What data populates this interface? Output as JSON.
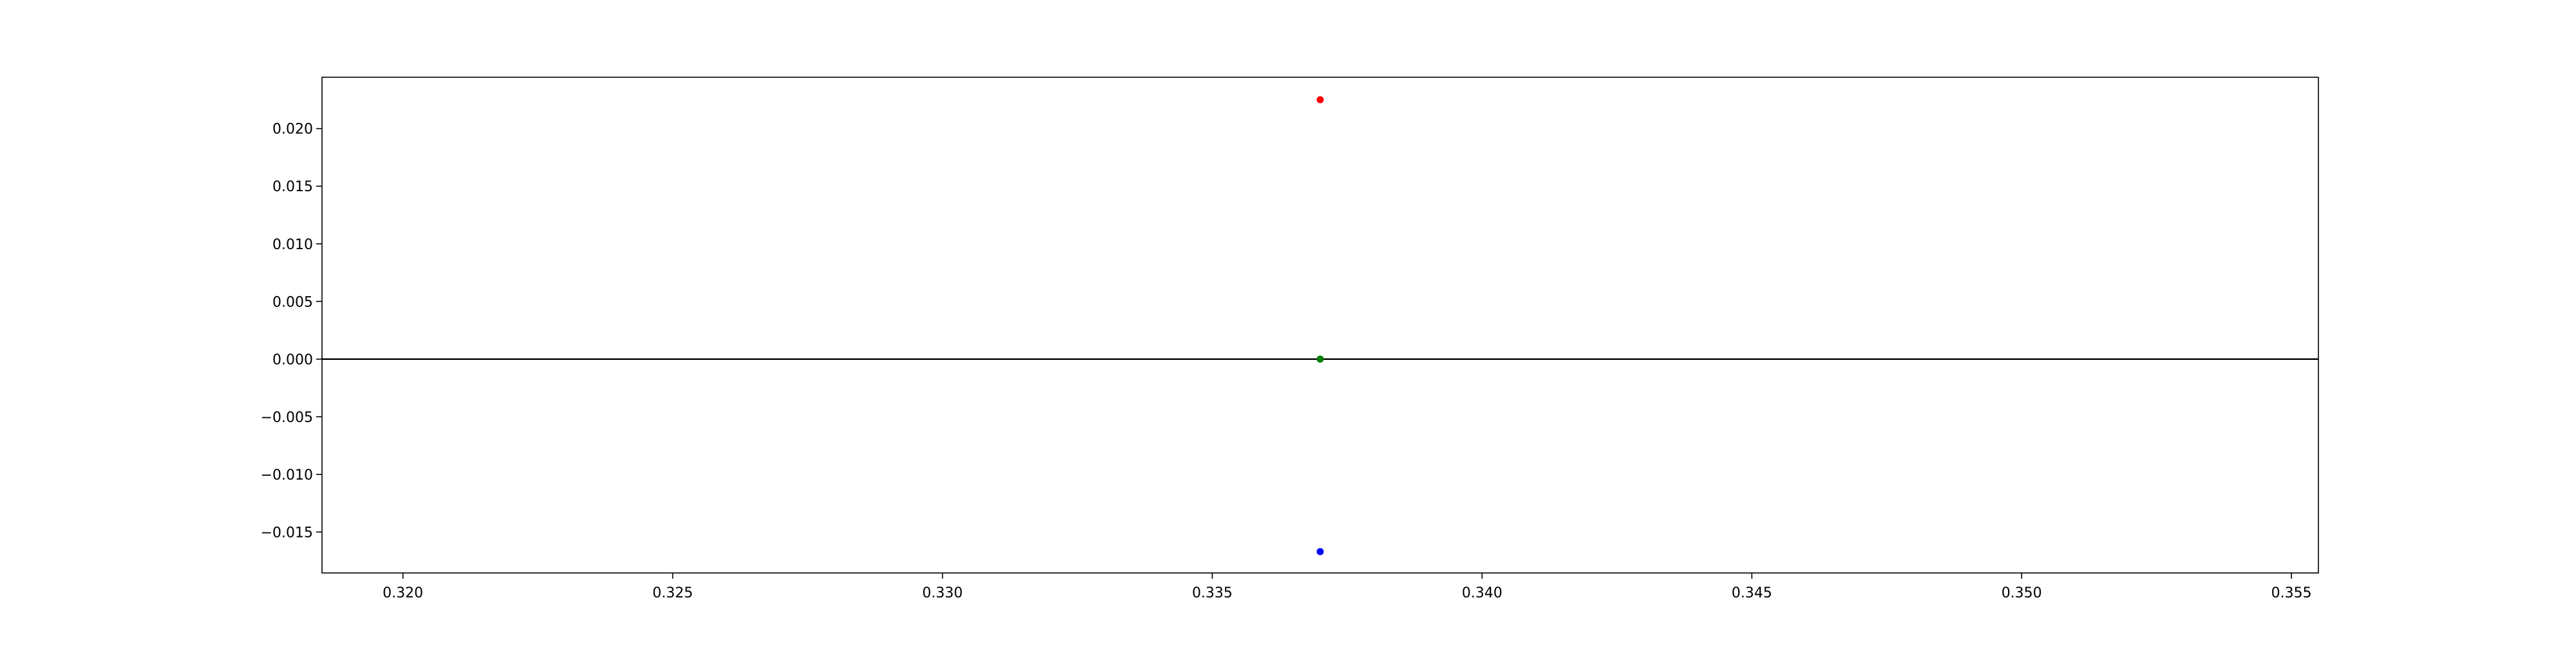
{
  "chart_data": {
    "type": "scatter",
    "title": "",
    "xlabel": "",
    "ylabel": "",
    "xlim": [
      0.3185,
      0.3555
    ],
    "ylim": [
      -0.01855,
      0.02445
    ],
    "grid": false,
    "x_ticks": [
      {
        "value": 0.32,
        "label": "0.320"
      },
      {
        "value": 0.325,
        "label": "0.325"
      },
      {
        "value": 0.33,
        "label": "0.330"
      },
      {
        "value": 0.335,
        "label": "0.335"
      },
      {
        "value": 0.34,
        "label": "0.340"
      },
      {
        "value": 0.345,
        "label": "0.345"
      },
      {
        "value": 0.35,
        "label": "0.350"
      },
      {
        "value": 0.355,
        "label": "0.355"
      }
    ],
    "y_ticks": [
      {
        "value": -0.015,
        "label": "−0.015"
      },
      {
        "value": -0.01,
        "label": "−0.010"
      },
      {
        "value": -0.005,
        "label": "−0.005"
      },
      {
        "value": 0.0,
        "label": "0.000"
      },
      {
        "value": 0.005,
        "label": "0.005"
      },
      {
        "value": 0.01,
        "label": "0.010"
      },
      {
        "value": 0.015,
        "label": "0.015"
      },
      {
        "value": 0.02,
        "label": "0.020"
      }
    ],
    "reference_lines": [
      {
        "orientation": "horizontal",
        "y": 0.0,
        "color": "#000000"
      }
    ],
    "points": [
      {
        "x": 0.337,
        "y": 0.0225,
        "color": "#ff0000"
      },
      {
        "x": 0.337,
        "y": 0.0,
        "color": "#008000"
      },
      {
        "x": 0.337,
        "y": -0.0167,
        "color": "#0000ff"
      }
    ]
  }
}
